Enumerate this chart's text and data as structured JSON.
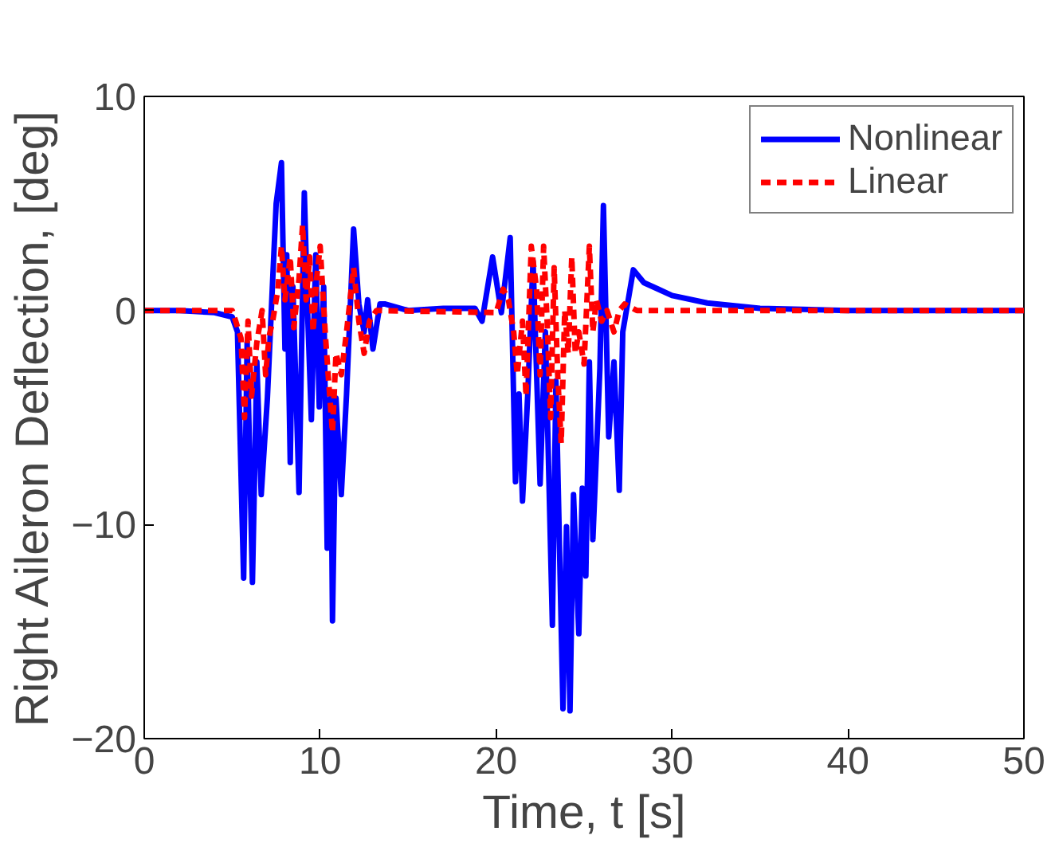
{
  "chart_data": {
    "type": "line",
    "xlabel": "Time, t [s]",
    "ylabel": "Right Aileron Deflection, [deg]",
    "xlim": [
      0,
      50
    ],
    "ylim": [
      -20,
      10
    ],
    "xticks": [
      0,
      10,
      20,
      30,
      40,
      50
    ],
    "yticks": [
      {
        "value": -20,
        "label": "−20"
      },
      {
        "value": -10,
        "label": "−10"
      },
      0,
      10
    ],
    "grid": false,
    "legend": "top right",
    "series": [
      {
        "name": "Nonlinear",
        "color": "#0000ff",
        "line_style": "solid",
        "x": [
          0,
          2,
          4,
          5,
          5.3,
          5.65,
          5.85,
          6.15,
          6.4,
          6.65,
          7.0,
          7.3,
          7.5,
          7.8,
          8.0,
          8.1,
          8.3,
          8.45,
          8.8,
          9.1,
          9.3,
          9.5,
          9.75,
          9.95,
          10.2,
          10.4,
          10.6,
          10.7,
          10.9,
          11.2,
          11.5,
          11.9,
          12.2,
          12.5,
          12.7,
          13.0,
          13.4,
          13.7,
          15,
          17,
          18.8,
          19.2,
          19.8,
          20.3,
          20.8,
          21.1,
          21.3,
          21.5,
          21.8,
          22.1,
          22.5,
          22.8,
          23.2,
          23.4,
          23.8,
          24.0,
          24.2,
          24.4,
          24.7,
          24.9,
          25.1,
          25.3,
          25.5,
          25.9,
          26.1,
          26.4,
          26.7,
          27.0,
          27.2,
          27.8,
          28.4,
          29.2,
          30,
          32,
          35,
          40,
          50
        ],
        "values": [
          0,
          0,
          -0.1,
          -0.3,
          -1.0,
          -12.5,
          -1.5,
          -12.7,
          -2.4,
          -8.6,
          -4.1,
          1.4,
          5,
          6.9,
          -1.8,
          2.6,
          -7.1,
          1.1,
          -8.5,
          5.5,
          -0.4,
          -5.1,
          2.6,
          -4.5,
          1.1,
          -11.1,
          -4.1,
          -14.5,
          -4.1,
          -8.6,
          -3.9,
          3.8,
          0.3,
          -1.0,
          0.5,
          -1.8,
          0.3,
          0.3,
          0,
          0.1,
          0.1,
          -0.5,
          2.5,
          -0.1,
          3.4,
          -8.0,
          -3.9,
          -8.9,
          -3.9,
          2.3,
          -8.1,
          -1.0,
          -14.7,
          -3.3,
          -18.6,
          -10.1,
          -18.7,
          -8.6,
          -15.1,
          -8.3,
          -12.4,
          -2.4,
          -10.7,
          -2.7,
          4.9,
          -5.9,
          -2.4,
          -8.4,
          -1.0,
          1.9,
          1.3,
          1.0,
          0.7,
          0.35,
          0.1,
          0,
          0
        ]
      },
      {
        "name": "Linear",
        "color": "#ff0000",
        "line_style": "dashed",
        "x": [
          0,
          5,
          5.2,
          5.5,
          5.7,
          5.9,
          6.1,
          6.4,
          6.7,
          6.9,
          7.1,
          7.3,
          7.6,
          7.8,
          8.0,
          8.3,
          8.5,
          8.8,
          9.0,
          9.2,
          9.4,
          9.6,
          9.8,
          10.0,
          10.3,
          10.5,
          10.7,
          10.9,
          11.2,
          11.5,
          11.7,
          11.9,
          12.2,
          12.5,
          12.8,
          13.2,
          20.0,
          20.4,
          20.7,
          21.0,
          21.2,
          21.5,
          21.7,
          22.0,
          22.3,
          22.5,
          22.7,
          22.9,
          23.1,
          23.3,
          23.5,
          23.7,
          23.9,
          24.1,
          24.3,
          24.5,
          24.7,
          25.0,
          25.3,
          25.5,
          25.7,
          26.0,
          26.3,
          26.7,
          27.0,
          27.3,
          28,
          50
        ],
        "values": [
          0,
          0,
          -0.5,
          -1.3,
          -5,
          -0.5,
          -4,
          -1.5,
          0,
          -3,
          -1.2,
          -0.5,
          1,
          3,
          0.5,
          2.5,
          -0.8,
          1.5,
          4.0,
          0.5,
          2.5,
          -1,
          1.5,
          3,
          -1.2,
          -3.5,
          -5.7,
          -2,
          -3,
          -1,
          0.5,
          2,
          -0.5,
          -2,
          -0.5,
          0,
          -0.1,
          1,
          0.5,
          -1,
          -3,
          -0.5,
          -4,
          3,
          1,
          -3,
          3,
          -0.5,
          -5,
          2,
          -3,
          -6.2,
          0,
          -2,
          2.5,
          -2,
          -1,
          -2.5,
          3.0,
          -1,
          0.5,
          -0.5,
          0,
          -1,
          0,
          0.3,
          0,
          0
        ]
      }
    ]
  }
}
